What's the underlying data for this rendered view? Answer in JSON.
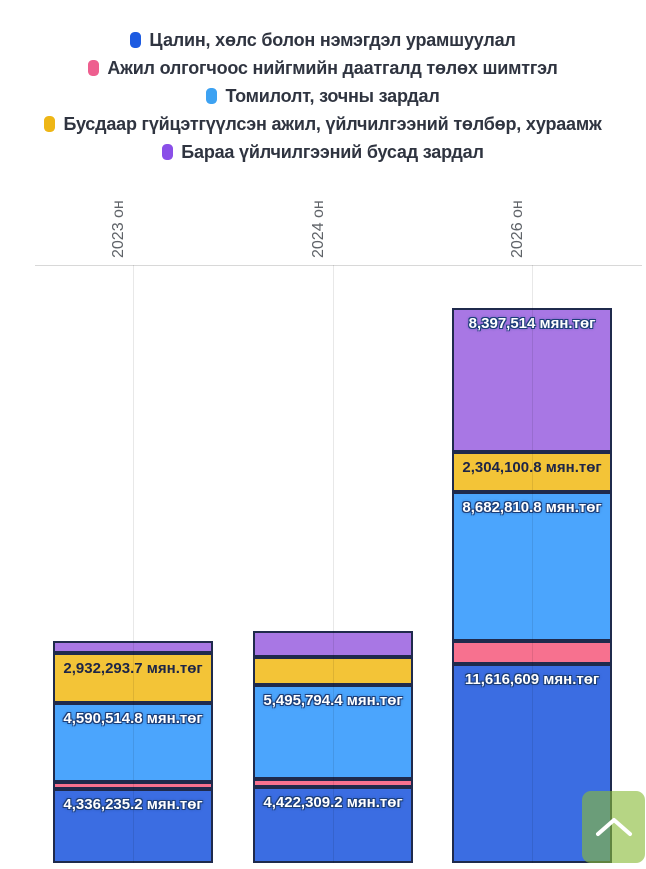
{
  "page": {
    "background": "#ffffff"
  },
  "icons": {
    "scroll_to_top": "chevron-up-icon"
  },
  "chart_data": {
    "type": "bar",
    "stacked": true,
    "orientation": "vertical",
    "legend_position": "top",
    "x_axis_position": "top",
    "x_tick_rotation": 90,
    "grid": "vertical-lines",
    "value_suffix": "мян.төг",
    "categories": [
      "2023 он",
      "2024 он",
      "2026 он"
    ],
    "series": [
      {
        "key": "salary",
        "name": "Цалин, хөлс болон нэмэгдэл урамшуулал",
        "legend_color": "#1d5be1",
        "fill": "#3b6de2",
        "values": [
          4336235.2,
          4422309.2,
          11616609
        ],
        "data_labels": [
          "4,336,235.2 мян.төг",
          "4,422,309.2 мян.төг",
          "11,616,609 мян.төг"
        ]
      },
      {
        "key": "social-insurance",
        "name": "Ажил олгогчоос нийгмийн даатгалд төлөх шимтгэл",
        "legend_color": "#ee5f8f",
        "fill": "#f7718f",
        "values": [
          410000,
          470000,
          1350000
        ],
        "data_labels": [
          "",
          "",
          ""
        ]
      },
      {
        "key": "travel-guest",
        "name": "Томилолт, зочны зардал",
        "legend_color": "#3da2f2",
        "fill": "#4ba5fd",
        "values": [
          4590514.8,
          5495794.4,
          8682810.8
        ],
        "data_labels": [
          "4,590,514.8 мян.төг",
          "5,495,794.4 мян.төг",
          "8,682,810.8 мян.төг"
        ]
      },
      {
        "key": "outsourced-work",
        "name": "Бусдаар гүйцэтгүүлсэн ажил, үйлчилгээний төлбөр, хураамж",
        "legend_color": "#eeb616",
        "fill": "#f3c437",
        "values": [
          2932293.7,
          1630000,
          2304100.8
        ],
        "data_labels": [
          "2,932,293.7 мян.төг",
          "",
          "2,304,100.8 мян.төг"
        ]
      },
      {
        "key": "other-goods",
        "name": "Бараа үйлчилгээний бусад зардал",
        "legend_color": "#8a4fe8",
        "fill": "#a877e4",
        "values": [
          700000,
          1520000,
          8397514
        ],
        "data_labels": [
          "",
          "",
          "8,397,514 мян.төг"
        ]
      }
    ]
  }
}
